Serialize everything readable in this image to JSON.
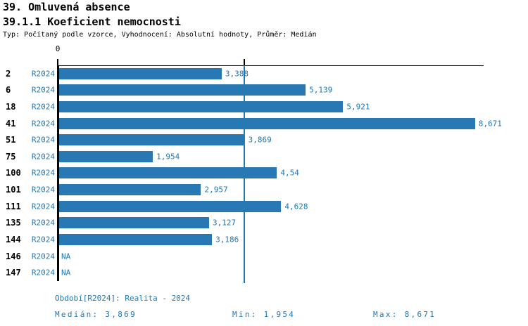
{
  "page": {
    "title": "39. Omluvená absence",
    "subtitle": "39.1.1 Koeficient nemocnosti",
    "description": "Typ: Počítaný podle vzorce, Vyhodnocení: Absolutní hodnoty, Průměr: Medián"
  },
  "chart_data": {
    "type": "bar",
    "orientation": "horizontal",
    "title": "39. Omluvená absence",
    "subtitle": "39.1.1 Koeficient nemocnosti",
    "series_label": "R2024",
    "categories": [
      "2",
      "6",
      "18",
      "41",
      "51",
      "75",
      "100",
      "101",
      "111",
      "135",
      "144",
      "146",
      "147"
    ],
    "rows": [
      {
        "category": "2",
        "period": "R2024",
        "value": 3.388,
        "value_label": "3,388"
      },
      {
        "category": "6",
        "period": "R2024",
        "value": 5.139,
        "value_label": "5,139"
      },
      {
        "category": "18",
        "period": "R2024",
        "value": 5.921,
        "value_label": "5,921"
      },
      {
        "category": "41",
        "period": "R2024",
        "value": 8.671,
        "value_label": "8,671"
      },
      {
        "category": "51",
        "period": "R2024",
        "value": 3.869,
        "value_label": "3,869"
      },
      {
        "category": "75",
        "period": "R2024",
        "value": 1.954,
        "value_label": "1,954"
      },
      {
        "category": "100",
        "period": "R2024",
        "value": 4.54,
        "value_label": "4,54"
      },
      {
        "category": "101",
        "period": "R2024",
        "value": 2.957,
        "value_label": "2,957"
      },
      {
        "category": "111",
        "period": "R2024",
        "value": 4.628,
        "value_label": "4,628"
      },
      {
        "category": "135",
        "period": "R2024",
        "value": 3.127,
        "value_label": "3,127"
      },
      {
        "category": "144",
        "period": "R2024",
        "value": 3.186,
        "value_label": "3,186"
      },
      {
        "category": "146",
        "period": "R2024",
        "value": null,
        "value_label": "NA"
      },
      {
        "category": "147",
        "period": "R2024",
        "value": null,
        "value_label": "NA"
      }
    ],
    "xlim": [
      0,
      8.85
    ],
    "x_zero_label": "0",
    "median_value": 3.869,
    "grid": false,
    "legend_position": "none",
    "colors": {
      "bar": "#2878b4",
      "text_blue": "#1f77b4",
      "axis": "#000000",
      "median_line": "#1f77b4"
    }
  },
  "footer": {
    "period_line": "Období[R2024]: Realita - 2024",
    "median": "Medián: 3,869",
    "min": "Min: 1,954",
    "max": "Max: 8,671"
  }
}
